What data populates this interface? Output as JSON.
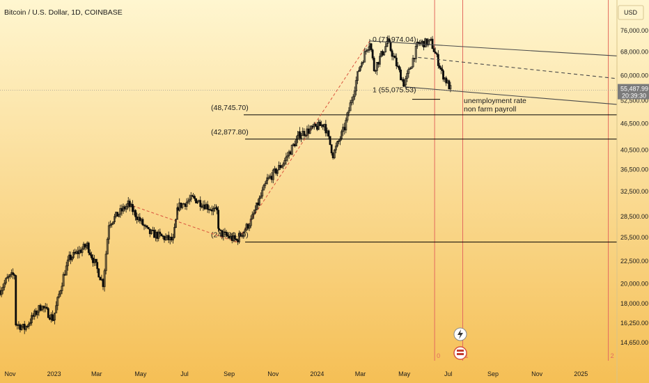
{
  "chart_data": {
    "type": "candlestick",
    "title": "Bitcoin / U.S. Dollar, 1D, COINBASE",
    "currency": "USD",
    "y_scale": "log",
    "ylim": [
      13700,
      88000
    ],
    "x_range": [
      "2022-10-18",
      "2025-02-20"
    ],
    "grid": false,
    "y_ticks": [
      14650,
      16250,
      18000,
      20000,
      22500,
      25500,
      28500,
      32500,
      36500,
      40500,
      46500,
      52500,
      60000,
      68000,
      76000
    ],
    "y_tick_labels": [
      "14,650.00",
      "16,250.00",
      "18,000.00",
      "20,000.00",
      "22,500.00",
      "25,500.00",
      "28,500.00",
      "32,500.00",
      "36,500.00",
      "40,500.00",
      "46,500.00",
      "52,500.00",
      "60,000.00",
      "68,000.00",
      "76,000.00"
    ],
    "x_ticks": [
      {
        "date": "2022-11-01",
        "label": "Nov"
      },
      {
        "date": "2023-01-01",
        "label": "2023"
      },
      {
        "date": "2023-03-01",
        "label": "Mar"
      },
      {
        "date": "2023-05-01",
        "label": "May"
      },
      {
        "date": "2023-07-01",
        "label": "Jul"
      },
      {
        "date": "2023-09-01",
        "label": "Sep"
      },
      {
        "date": "2023-11-01",
        "label": "Nov"
      },
      {
        "date": "2024-01-01",
        "label": "2024"
      },
      {
        "date": "2024-03-01",
        "label": "Mar"
      },
      {
        "date": "2024-05-01",
        "label": "May"
      },
      {
        "date": "2024-07-01",
        "label": "Jul"
      },
      {
        "date": "2024-09-01",
        "label": "Sep"
      },
      {
        "date": "2024-11-01",
        "label": "Nov"
      },
      {
        "date": "2025-01-01",
        "label": "2025"
      }
    ],
    "price_path": [
      [
        "2022-10-18",
        19300
      ],
      [
        "2022-10-28",
        20500
      ],
      [
        "2022-11-07",
        21000
      ],
      [
        "2022-11-09",
        16200
      ],
      [
        "2022-11-21",
        15800
      ],
      [
        "2022-12-14",
        17800
      ],
      [
        "2022-12-31",
        16600
      ],
      [
        "2023-01-14",
        20800
      ],
      [
        "2023-01-22",
        22800
      ],
      [
        "2023-02-16",
        24500
      ],
      [
        "2023-03-10",
        20000
      ],
      [
        "2023-03-18",
        27500
      ],
      [
        "2023-04-14",
        30400
      ],
      [
        "2023-05-12",
        26200
      ],
      [
        "2023-06-15",
        25100
      ],
      [
        "2023-06-22",
        30000
      ],
      [
        "2023-07-13",
        31400
      ],
      [
        "2023-08-15",
        29200
      ],
      [
        "2023-08-18",
        26200
      ],
      [
        "2023-09-11",
        25100
      ],
      [
        "2023-10-01",
        27800
      ],
      [
        "2023-10-24",
        34500
      ],
      [
        "2023-11-15",
        37800
      ],
      [
        "2023-12-08",
        44000
      ],
      [
        "2024-01-11",
        46500
      ],
      [
        "2024-01-23",
        39500
      ],
      [
        "2024-02-08",
        45500
      ],
      [
        "2024-02-28",
        62000
      ],
      [
        "2024-03-14",
        71974
      ],
      [
        "2024-03-20",
        62000
      ],
      [
        "2024-04-08",
        71500
      ],
      [
        "2024-05-01",
        57000
      ],
      [
        "2024-05-20",
        71000
      ],
      [
        "2024-06-07",
        71500
      ],
      [
        "2024-06-24",
        60000
      ],
      [
        "2024-07-05",
        55487.99
      ]
    ],
    "last_price": {
      "value": 55487.99,
      "label": "55,487.99",
      "countdown": "20:39:30"
    },
    "horizontal_levels": [
      {
        "value": 48745.7,
        "label": "(48,745.70)"
      },
      {
        "value": 42877.8,
        "label": "(42,877.80)"
      },
      {
        "value": 24900.0,
        "label": "(24,900.00)"
      }
    ],
    "fib_points": [
      {
        "label": "0 (71,974.04)",
        "value": 71974.04
      },
      {
        "label": "1 (55,075.53)",
        "value": 55075.53
      }
    ],
    "channel_lines": [
      {
        "style": "solid",
        "from": {
          "date": "2024-03-14",
          "value": 71974
        },
        "to": {
          "date": "2025-02-20",
          "value": 66500
        }
      },
      {
        "style": "dashed",
        "from": {
          "date": "2024-05-20",
          "value": 66000
        },
        "to": {
          "date": "2025-02-20",
          "value": 59000
        }
      },
      {
        "style": "solid",
        "from": {
          "date": "2024-05-01",
          "value": 56500
        },
        "to": {
          "date": "2025-02-20",
          "value": 51500
        }
      }
    ],
    "trend_lines": [
      {
        "style": "dashed",
        "from": {
          "date": "2023-04-14",
          "value": 30400
        },
        "to": {
          "date": "2023-09-11",
          "value": 24900
        }
      },
      {
        "style": "dashed",
        "from": {
          "date": "2023-09-11",
          "value": 24900
        },
        "to": {
          "date": "2024-03-14",
          "value": 71974
        }
      }
    ],
    "fib_time_zones": [
      {
        "date": "2024-06-12",
        "label": "0"
      },
      {
        "date": "2024-07-21",
        "label": "1"
      },
      {
        "date": "2025-02-08",
        "label": "2"
      }
    ],
    "annotations": [
      "unemployment rate",
      "non farm payroll"
    ],
    "colors": {
      "background_top": "#fff6d0",
      "background_bottom": "#f5bf55",
      "bullish": "#0a0a0a",
      "bearish": "#0a0a0a",
      "channel": "#4a4a4a",
      "time_zone": "#e36a5e",
      "last_price_bg": "#7b7b7b"
    }
  }
}
